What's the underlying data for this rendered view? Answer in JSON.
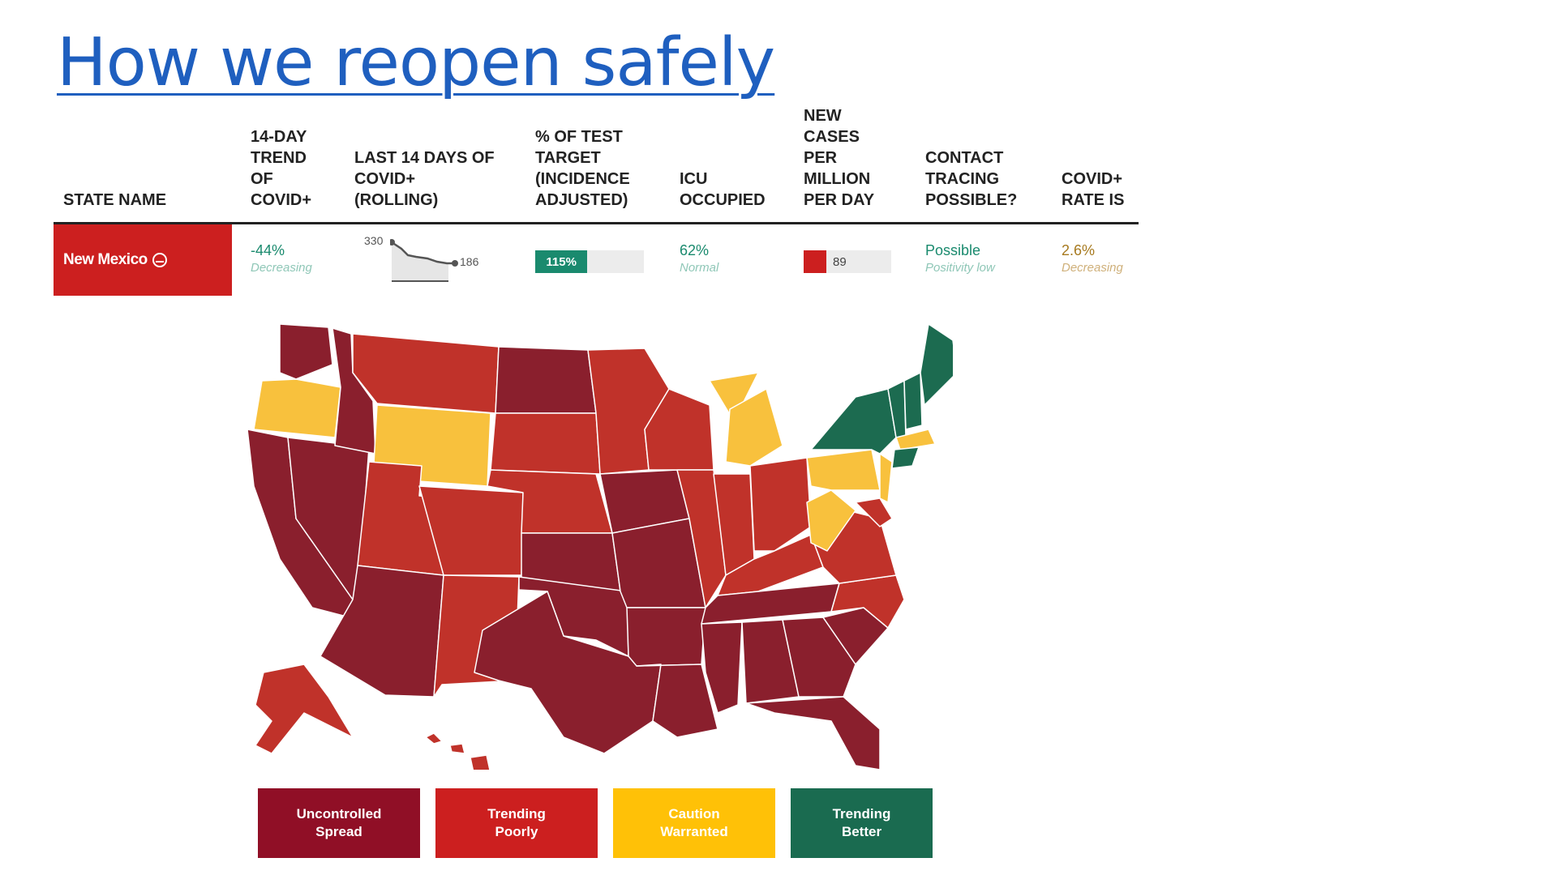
{
  "slide": {
    "title": "How we reopen safely"
  },
  "table": {
    "headers": [
      "STATE NAME",
      "14-DAY\nTREND\nOF\nCOVID+",
      "LAST 14 DAYS OF\nCOVID+\n(ROLLING)",
      "% OF TEST\nTARGET\n(INCIDENCE\nADJUSTED)",
      "ICU\nOCCUPIED",
      "NEW\nCASES\nPER\nMILLION\nPER DAY",
      "CONTACT\nTRACING\nPOSSIBLE?",
      "COVID+\nRATE IS"
    ],
    "row": {
      "state": "New Mexico",
      "trend_value": "-44%",
      "trend_status": "Decreasing",
      "spark_start": "330",
      "spark_end": "186",
      "test_target": "115%",
      "test_target_fraction": 1.0,
      "icu_value": "62%",
      "icu_status": "Normal",
      "new_cases": "89",
      "contact_value": "Possible",
      "contact_status": "Positivity low",
      "rate_value": "2.6%",
      "rate_status": "Decreasing"
    }
  },
  "colors": {
    "uncontrolled": "#8a1f2d",
    "trending_poorly": "#c0322a",
    "caution": "#f8c13d",
    "trending_better": "#1c6b50",
    "state_cell": "#cc1f1f",
    "test_bar": "#1a8a6e"
  },
  "legend": [
    {
      "label": "Uncontrolled\nSpread",
      "color": "#900f26"
    },
    {
      "label": "Trending\nPoorly",
      "color": "#cc1f1f"
    },
    {
      "label": "Caution\nWarranted",
      "color": "#ffc107"
    },
    {
      "label": "Trending\nBetter",
      "color": "#1a6b50"
    }
  ]
}
